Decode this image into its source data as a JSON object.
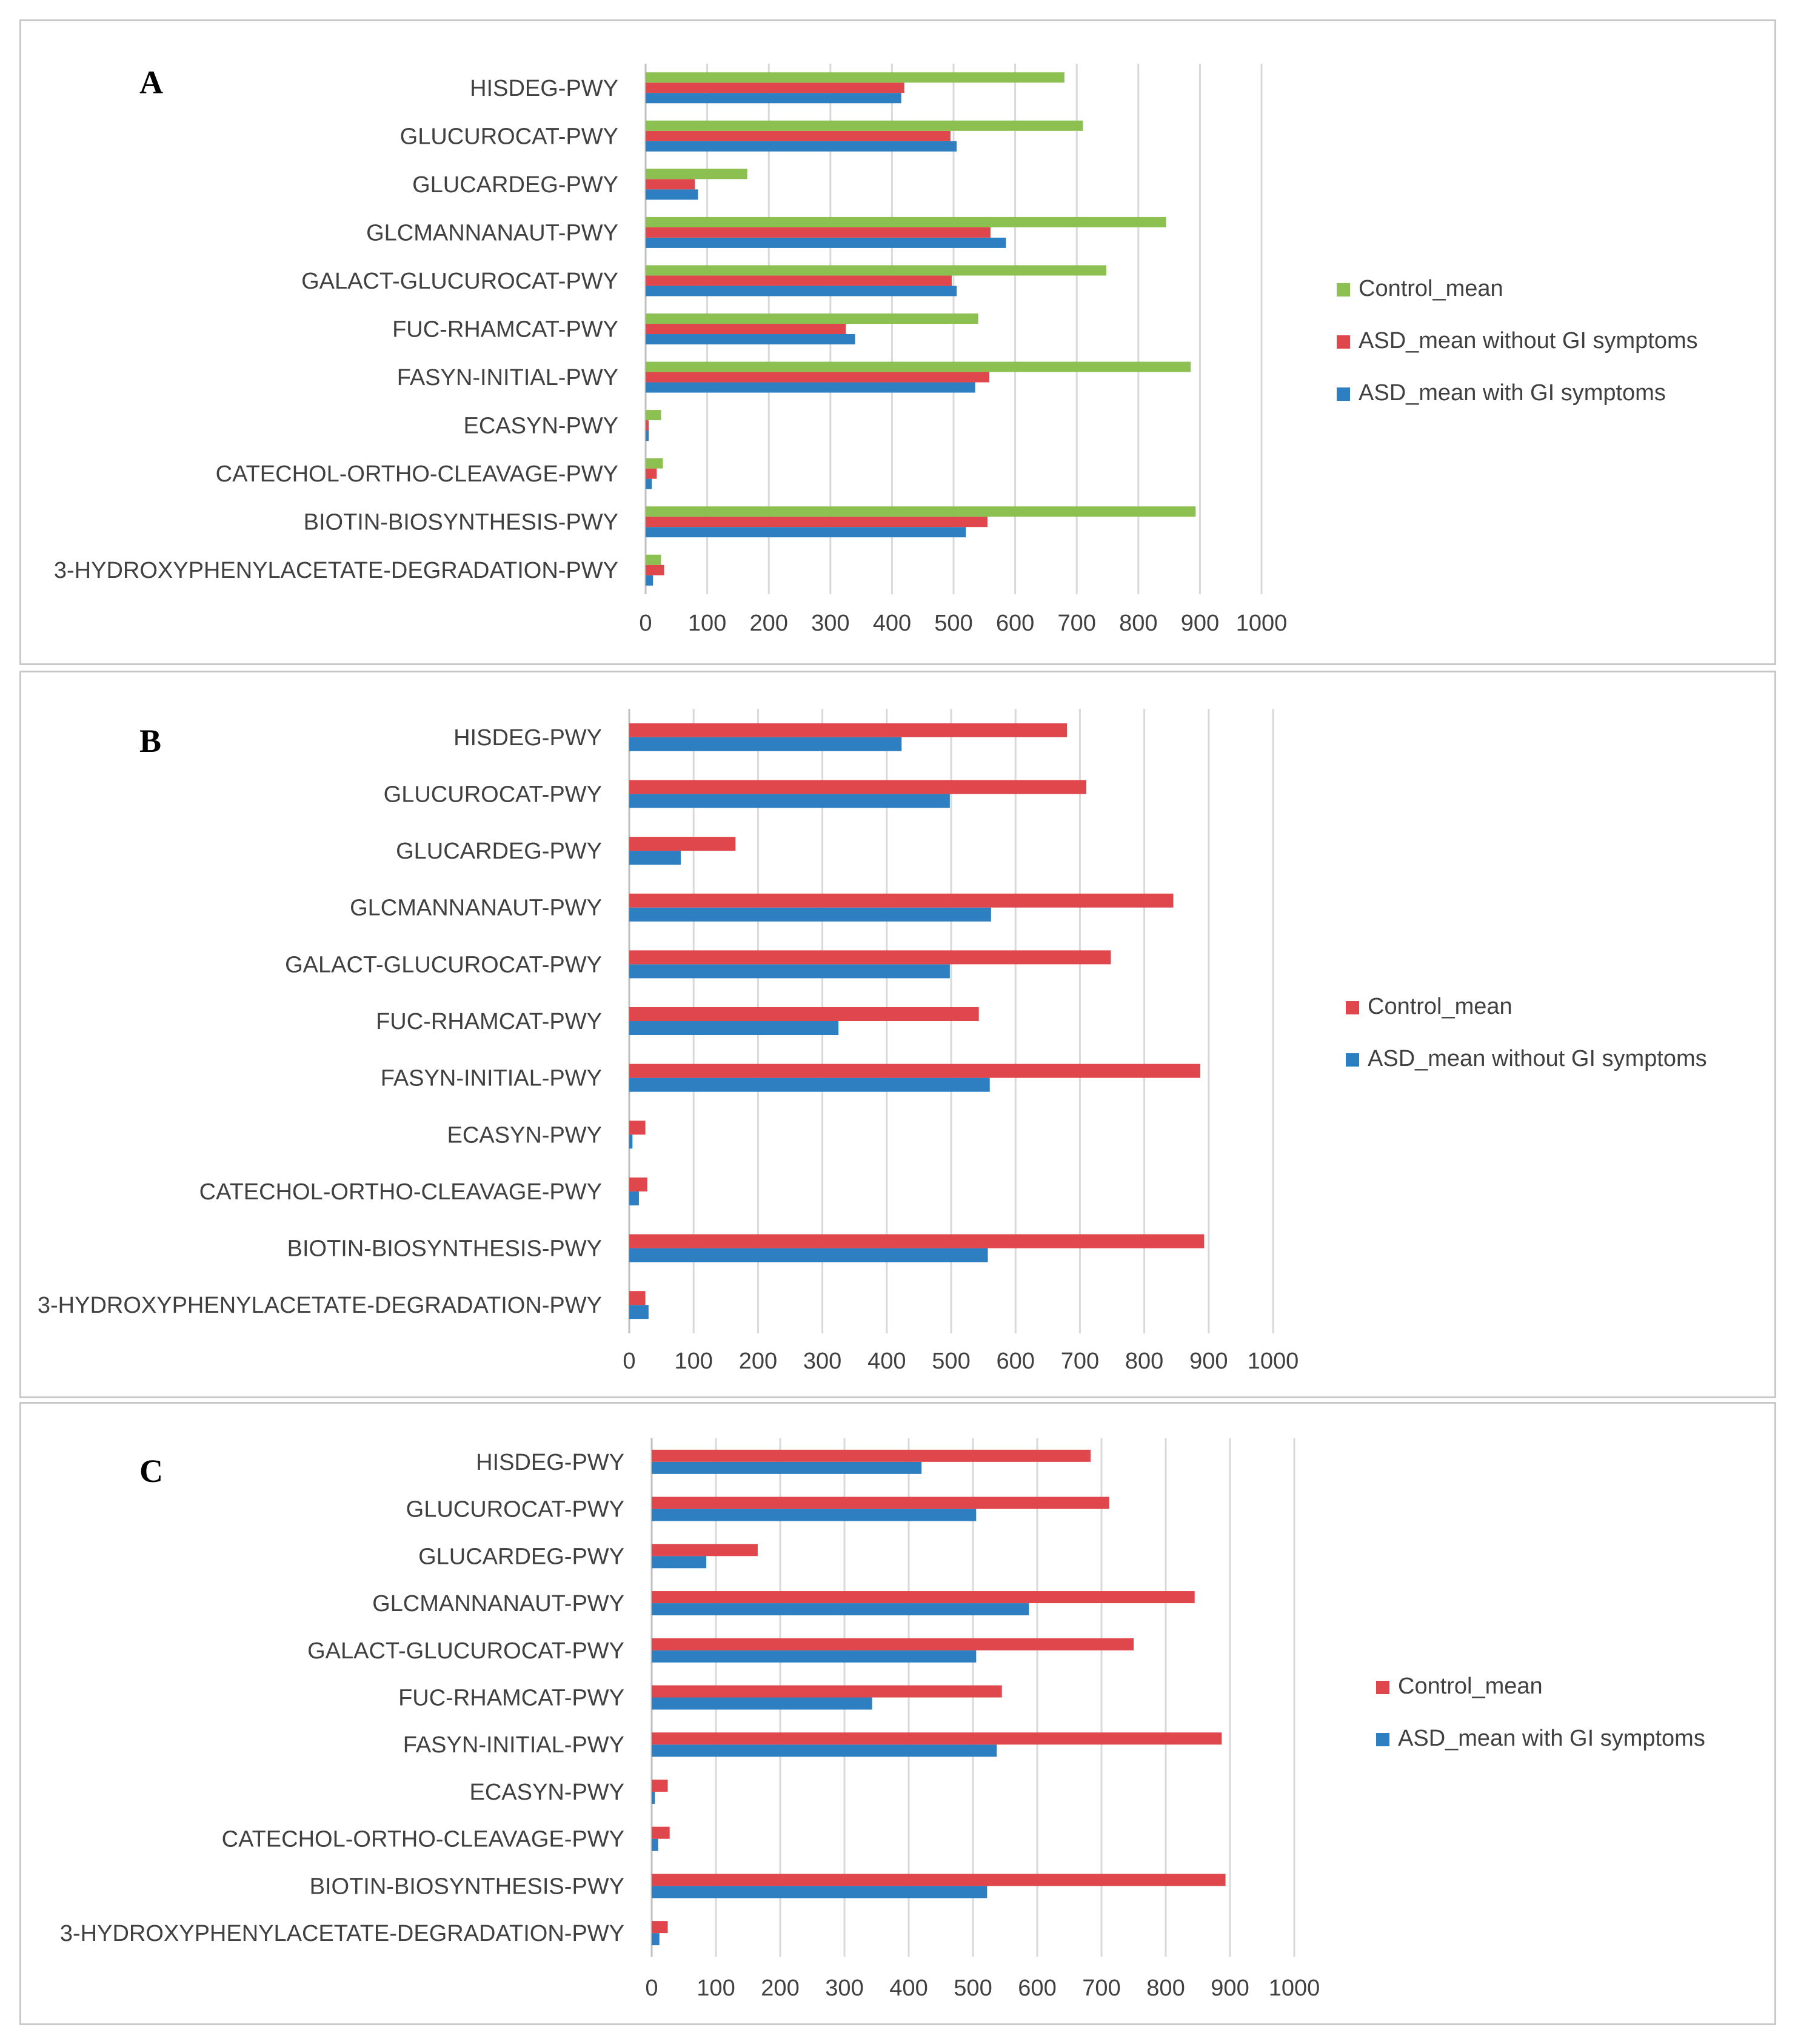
{
  "chart_data": [
    {
      "type": "bar",
      "orientation": "horizontal",
      "panel_label": "A",
      "categories": [
        "HISDEG-PWY",
        "GLUCUROCAT-PWY",
        "GLUCARDEG-PWY",
        "GLCMANNANAUT-PWY",
        "GALACT-GLUCUROCAT-PWY",
        "FUC-RHAMCAT-PWY",
        "FASYN-INITIAL-PWY",
        "ECASYN-PWY",
        "CATECHOL-ORTHO-CLEAVAGE-PWY",
        "BIOTIN-BIOSYNTHESIS-PWY",
        "3-HYDROXYPHENYLACETATE-DEGRADATION-PWY"
      ],
      "series": [
        {
          "name": "ASD_mean with GI symptoms",
          "color": "#2e7fc1",
          "values": [
            415,
            505,
            85,
            585,
            505,
            340,
            535,
            5,
            10,
            520,
            12
          ]
        },
        {
          "name": "ASD_mean without GI symptoms",
          "color": "#e0474c",
          "values": [
            420,
            495,
            80,
            560,
            497,
            325,
            558,
            5,
            18,
            555,
            30
          ]
        },
        {
          "name": "Control_mean",
          "color": "#8cc152",
          "values": [
            680,
            710,
            165,
            845,
            748,
            540,
            885,
            25,
            28,
            893,
            25
          ]
        }
      ],
      "legend": [
        "Control_mean",
        "ASD_mean without GI symptoms",
        "ASD_mean with GI symptoms"
      ],
      "xticks": [
        "0",
        "100",
        "200",
        "300",
        "400",
        "500",
        "600",
        "700",
        "800",
        "900",
        "1000"
      ],
      "xlim": [
        0,
        1000
      ],
      "grid": true,
      "legend_position": "right"
    },
    {
      "type": "bar",
      "orientation": "horizontal",
      "panel_label": "B",
      "categories": [
        "HISDEG-PWY",
        "GLUCUROCAT-PWY",
        "GLUCARDEG-PWY",
        "GLCMANNANAUT-PWY",
        "GALACT-GLUCUROCAT-PWY",
        "FUC-RHAMCAT-PWY",
        "FASYN-INITIAL-PWY",
        "ECASYN-PWY",
        "CATECHOL-ORTHO-CLEAVAGE-PWY",
        "BIOTIN-BIOSYNTHESIS-PWY",
        "3-HYDROXYPHENYLACETATE-DEGRADATION-PWY"
      ],
      "series": [
        {
          "name": "ASD_mean without GI symptoms",
          "color": "#2e7fc1",
          "values": [
            423,
            498,
            80,
            562,
            498,
            325,
            560,
            5,
            15,
            557,
            30
          ]
        },
        {
          "name": "Control_mean",
          "color": "#e0474c",
          "values": [
            680,
            710,
            165,
            845,
            748,
            543,
            887,
            25,
            28,
            893,
            25
          ]
        }
      ],
      "legend": [
        "Control_mean",
        "ASD_mean without GI symptoms"
      ],
      "xticks": [
        "0",
        "100",
        "200",
        "300",
        "400",
        "500",
        "600",
        "700",
        "800",
        "900",
        "1000"
      ],
      "xlim": [
        0,
        1000
      ],
      "grid": true,
      "legend_position": "right"
    },
    {
      "type": "bar",
      "orientation": "horizontal",
      "panel_label": "C",
      "categories": [
        "HISDEG-PWY",
        "GLUCUROCAT-PWY",
        "GLUCARDEG-PWY",
        "GLCMANNANAUT-PWY",
        "GALACT-GLUCUROCAT-PWY",
        "FUC-RHAMCAT-PWY",
        "FASYN-INITIAL-PWY",
        "ECASYN-PWY",
        "CATECHOL-ORTHO-CLEAVAGE-PWY",
        "BIOTIN-BIOSYNTHESIS-PWY",
        "3-HYDROXYPHENYLACETATE-DEGRADATION-PWY"
      ],
      "series": [
        {
          "name": "ASD_mean with GI symptoms",
          "color": "#2e7fc1",
          "values": [
            420,
            505,
            85,
            587,
            505,
            343,
            537,
            5,
            10,
            522,
            12
          ]
        },
        {
          "name": "Control_mean",
          "color": "#e0474c",
          "values": [
            683,
            712,
            165,
            845,
            750,
            545,
            887,
            25,
            28,
            893,
            25
          ]
        }
      ],
      "legend": [
        "Control_mean",
        "ASD_mean with GI symptoms"
      ],
      "xticks": [
        "0",
        "100",
        "200",
        "300",
        "400",
        "500",
        "600",
        "700",
        "800",
        "900",
        "1000"
      ],
      "xlim": [
        0,
        1000
      ],
      "grid": true,
      "legend_position": "right"
    }
  ]
}
